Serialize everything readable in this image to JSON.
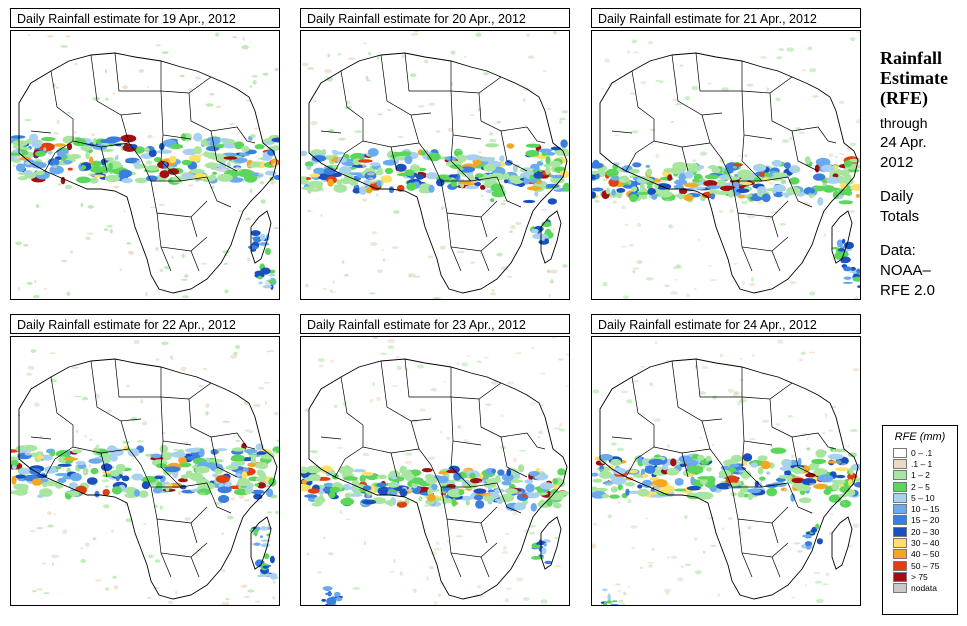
{
  "panels": [
    {
      "title": "Daily Rainfall estimate for  19 Apr., 2012"
    },
    {
      "title": "Daily Rainfall estimate for  20 Apr., 2012"
    },
    {
      "title": "Daily Rainfall estimate for  21 Apr., 2012"
    },
    {
      "title": "Daily Rainfall estimate for  22 Apr., 2012"
    },
    {
      "title": "Daily Rainfall estimate for  23 Apr., 2012"
    },
    {
      "title": "Daily Rainfall estimate for  24 Apr., 2012"
    }
  ],
  "sidebar": {
    "title_line1": "Rainfall",
    "title_line2": "Estimate",
    "title_line3": "(RFE)",
    "through": "through",
    "date_line1": "24 Apr.",
    "date_line2": "2012",
    "daily": "Daily",
    "totals": "Totals",
    "data_label": "Data:",
    "source_line1": "NOAA–",
    "source_line2": "RFE 2.0"
  },
  "legend": {
    "title": "RFE (mm)",
    "items": [
      {
        "label": "0 – .1",
        "color": "#ffffff"
      },
      {
        "label": ".1 – 1",
        "color": "#e8d8c4"
      },
      {
        "label": "1 – 2",
        "color": "#a8e6a0"
      },
      {
        "label": "2 – 5",
        "color": "#5ad65a"
      },
      {
        "label": "5 – 10",
        "color": "#a8d0f0"
      },
      {
        "label": "10 – 15",
        "color": "#6aaaee"
      },
      {
        "label": "15 – 20",
        "color": "#3a7ee0"
      },
      {
        "label": "20 – 30",
        "color": "#1a4fc0"
      },
      {
        "label": "30 – 40",
        "color": "#ffe066"
      },
      {
        "label": "40 – 50",
        "color": "#f5a623"
      },
      {
        "label": "50 – 75",
        "color": "#e04010"
      },
      {
        "label": "> 75",
        "color": "#a01010"
      },
      {
        "label": "nodata",
        "color": "#c8c8c8"
      }
    ]
  }
}
